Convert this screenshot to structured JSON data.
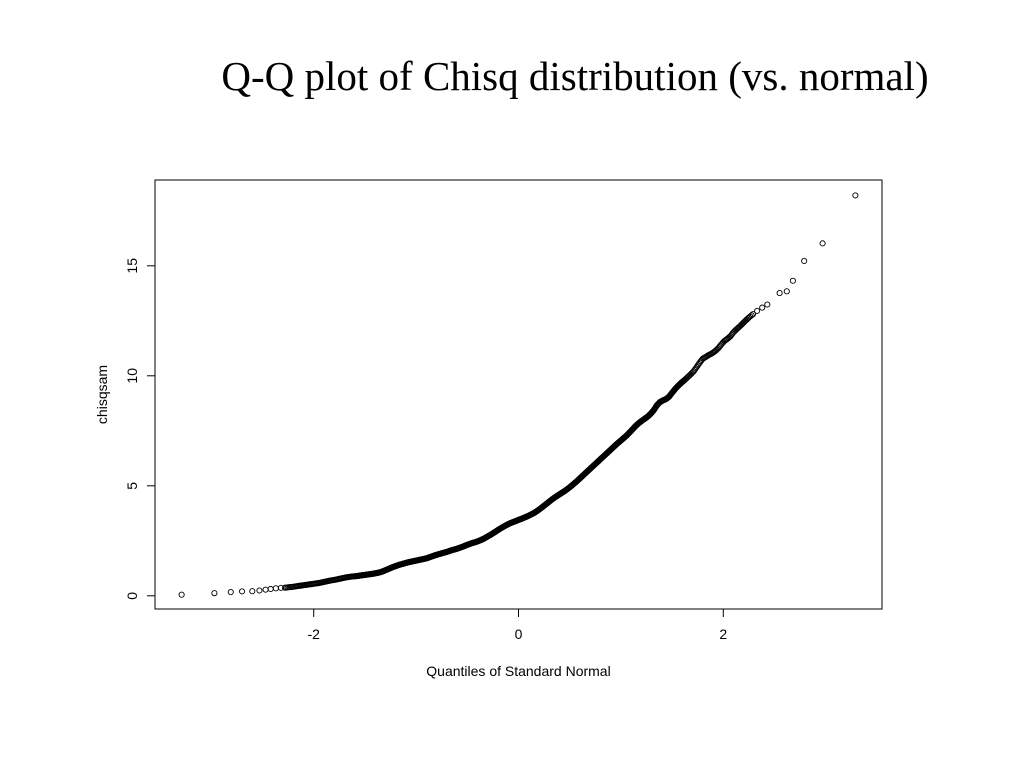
{
  "slide": {
    "title": "Q-Q plot of Chisq distribution (vs. normal)"
  },
  "chart_data": {
    "type": "scatter",
    "title": "",
    "xlabel": "Quantiles of Standard Normal",
    "ylabel": "chisqsam",
    "xlim": [
      -3.55,
      3.55
    ],
    "ylim": [
      -0.6,
      18.9
    ],
    "xticks": [
      -2,
      0,
      2
    ],
    "yticks": [
      0,
      5,
      10,
      15
    ],
    "xtick_labels": [
      "-2",
      "0",
      "2"
    ],
    "ytick_labels": [
      "0",
      "5",
      "10",
      "15"
    ],
    "grid": false,
    "marker": "open-circle",
    "color": "#000000",
    "series": [
      {
        "points": [
          [
            -3.29,
            0.05
          ],
          [
            -2.97,
            0.12
          ],
          [
            -2.81,
            0.17
          ],
          [
            -2.7,
            0.2
          ],
          [
            -2.6,
            0.21
          ],
          [
            -2.53,
            0.24
          ],
          [
            -2.47,
            0.28
          ],
          [
            -2.42,
            0.31
          ],
          [
            -2.37,
            0.34
          ],
          [
            -2.32,
            0.36
          ],
          [
            -2.28,
            0.37
          ],
          [
            -2.24,
            0.39
          ],
          [
            -2.2,
            0.41
          ],
          [
            -2.16,
            0.44
          ],
          [
            -2.13,
            0.46
          ],
          [
            -2.1,
            0.48
          ],
          [
            -2.07,
            0.5
          ],
          [
            -2.04,
            0.52
          ],
          [
            -2.01,
            0.54
          ],
          [
            -1.98,
            0.56
          ],
          [
            -1.95,
            0.58
          ],
          [
            -1.92,
            0.61
          ],
          [
            -1.89,
            0.64
          ],
          [
            -1.86,
            0.67
          ],
          [
            -1.83,
            0.7
          ],
          [
            -1.8,
            0.72
          ],
          [
            -1.77,
            0.75
          ],
          [
            -1.74,
            0.78
          ],
          [
            -1.71,
            0.81
          ],
          [
            -1.68,
            0.84
          ],
          [
            -1.65,
            0.86
          ],
          [
            -1.62,
            0.88
          ],
          [
            -1.59,
            0.89
          ],
          [
            -1.56,
            0.91
          ],
          [
            -1.53,
            0.93
          ],
          [
            -1.5,
            0.95
          ],
          [
            -1.47,
            0.97
          ],
          [
            -1.44,
            0.99
          ],
          [
            -1.41,
            1.01
          ],
          [
            -1.38,
            1.04
          ],
          [
            -1.35,
            1.07
          ],
          [
            -1.32,
            1.12
          ],
          [
            -1.29,
            1.18
          ],
          [
            -1.26,
            1.24
          ],
          [
            -1.23,
            1.3
          ],
          [
            -1.2,
            1.35
          ],
          [
            -1.17,
            1.4
          ],
          [
            -1.14,
            1.44
          ],
          [
            -1.11,
            1.48
          ],
          [
            -1.08,
            1.52
          ],
          [
            -1.05,
            1.55
          ],
          [
            -1.02,
            1.58
          ],
          [
            -0.99,
            1.61
          ],
          [
            -0.96,
            1.64
          ],
          [
            -0.93,
            1.67
          ],
          [
            -0.9,
            1.7
          ],
          [
            -0.87,
            1.75
          ],
          [
            -0.84,
            1.8
          ],
          [
            -0.81,
            1.85
          ],
          [
            -0.78,
            1.89
          ],
          [
            -0.75,
            1.93
          ],
          [
            -0.72,
            1.97
          ],
          [
            -0.69,
            2.01
          ],
          [
            -0.66,
            2.06
          ],
          [
            -0.63,
            2.1
          ],
          [
            -0.6,
            2.14
          ],
          [
            -0.57,
            2.19
          ],
          [
            -0.54,
            2.24
          ],
          [
            -0.51,
            2.3
          ],
          [
            -0.48,
            2.35
          ],
          [
            -0.45,
            2.4
          ],
          [
            -0.42,
            2.44
          ],
          [
            -0.39,
            2.49
          ],
          [
            -0.36,
            2.55
          ],
          [
            -0.33,
            2.62
          ],
          [
            -0.3,
            2.7
          ],
          [
            -0.27,
            2.78
          ],
          [
            -0.24,
            2.87
          ],
          [
            -0.21,
            2.96
          ],
          [
            -0.18,
            3.05
          ],
          [
            -0.15,
            3.13
          ],
          [
            -0.12,
            3.21
          ],
          [
            -0.09,
            3.28
          ],
          [
            -0.06,
            3.34
          ],
          [
            -0.03,
            3.39
          ],
          [
            0.0,
            3.45
          ],
          [
            0.03,
            3.5
          ],
          [
            0.06,
            3.56
          ],
          [
            0.09,
            3.62
          ],
          [
            0.12,
            3.69
          ],
          [
            0.15,
            3.76
          ],
          [
            0.18,
            3.85
          ],
          [
            0.21,
            3.95
          ],
          [
            0.24,
            4.06
          ],
          [
            0.27,
            4.17
          ],
          [
            0.3,
            4.28
          ],
          [
            0.33,
            4.39
          ],
          [
            0.36,
            4.49
          ],
          [
            0.39,
            4.58
          ],
          [
            0.42,
            4.67
          ],
          [
            0.45,
            4.76
          ],
          [
            0.48,
            4.86
          ],
          [
            0.51,
            4.97
          ],
          [
            0.54,
            5.09
          ],
          [
            0.57,
            5.21
          ],
          [
            0.6,
            5.34
          ],
          [
            0.63,
            5.47
          ],
          [
            0.66,
            5.6
          ],
          [
            0.69,
            5.73
          ],
          [
            0.72,
            5.86
          ],
          [
            0.75,
            5.99
          ],
          [
            0.78,
            6.12
          ],
          [
            0.81,
            6.25
          ],
          [
            0.84,
            6.38
          ],
          [
            0.87,
            6.51
          ],
          [
            0.9,
            6.64
          ],
          [
            0.93,
            6.77
          ],
          [
            0.96,
            6.9
          ],
          [
            0.99,
            7.02
          ],
          [
            1.02,
            7.14
          ],
          [
            1.05,
            7.26
          ],
          [
            1.08,
            7.4
          ],
          [
            1.11,
            7.55
          ],
          [
            1.14,
            7.7
          ],
          [
            1.17,
            7.83
          ],
          [
            1.2,
            7.94
          ],
          [
            1.23,
            8.04
          ],
          [
            1.26,
            8.14
          ],
          [
            1.29,
            8.27
          ],
          [
            1.32,
            8.43
          ],
          [
            1.35,
            8.65
          ],
          [
            1.38,
            8.8
          ],
          [
            1.41,
            8.88
          ],
          [
            1.44,
            8.94
          ],
          [
            1.47,
            9.05
          ],
          [
            1.5,
            9.23
          ],
          [
            1.53,
            9.4
          ],
          [
            1.56,
            9.55
          ],
          [
            1.59,
            9.68
          ],
          [
            1.62,
            9.8
          ],
          [
            1.65,
            9.93
          ],
          [
            1.68,
            10.06
          ],
          [
            1.71,
            10.2
          ],
          [
            1.74,
            10.4
          ],
          [
            1.77,
            10.6
          ],
          [
            1.8,
            10.78
          ],
          [
            1.83,
            10.86
          ],
          [
            1.86,
            10.95
          ],
          [
            1.89,
            11.02
          ],
          [
            1.92,
            11.12
          ],
          [
            1.95,
            11.25
          ],
          [
            1.98,
            11.42
          ],
          [
            2.01,
            11.58
          ],
          [
            2.04,
            11.68
          ],
          [
            2.07,
            11.8
          ],
          [
            2.1,
            11.98
          ],
          [
            2.13,
            12.12
          ],
          [
            2.16,
            12.24
          ],
          [
            2.19,
            12.38
          ],
          [
            2.22,
            12.52
          ],
          [
            2.25,
            12.65
          ],
          [
            2.29,
            12.8
          ],
          [
            2.33,
            12.95
          ],
          [
            2.38,
            13.1
          ],
          [
            2.43,
            13.24
          ],
          [
            2.55,
            13.76
          ],
          [
            2.62,
            13.84
          ],
          [
            2.68,
            14.32
          ],
          [
            2.79,
            15.22
          ],
          [
            2.97,
            16.02
          ],
          [
            3.29,
            18.2
          ]
        ]
      }
    ]
  }
}
